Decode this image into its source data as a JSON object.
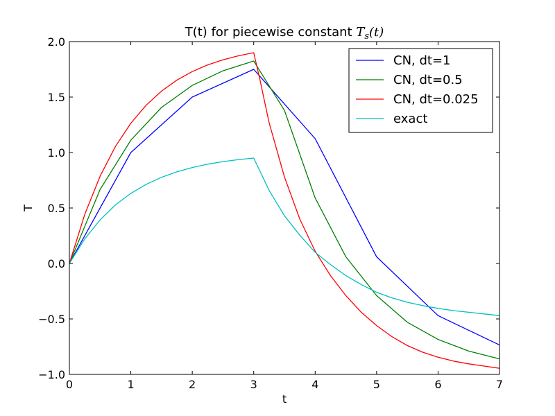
{
  "chart_data": {
    "type": "line",
    "title": "T(t) for piecewise constant ",
    "title_math": {
      "base": "T",
      "sub": "s",
      "tail": "(t)"
    },
    "xlabel": "t",
    "ylabel": "T",
    "xlim": [
      0,
      7
    ],
    "ylim": [
      -1.0,
      2.0
    ],
    "xticks": [
      0,
      1,
      2,
      3,
      4,
      5,
      6,
      7
    ],
    "xtick_labels": [
      "0",
      "1",
      "2",
      "3",
      "4",
      "5",
      "6",
      "7"
    ],
    "yticks": [
      -1.0,
      -0.5,
      0.0,
      0.5,
      1.0,
      1.5,
      2.0
    ],
    "ytick_labels": [
      "−1.0",
      "−0.5",
      "0.0",
      "0.5",
      "1.0",
      "1.5",
      "2.0"
    ],
    "grid": false,
    "legend_position": "top-right",
    "series": [
      {
        "name": "CN, dt=1",
        "color": "#0000ff",
        "x": [
          0,
          1,
          2,
          3,
          4,
          5,
          6,
          7
        ],
        "y": [
          0,
          1.0,
          1.5,
          1.75,
          1.125,
          0.06,
          -0.47,
          -0.735
        ]
      },
      {
        "name": "CN, dt=0.5",
        "color": "#008000",
        "x": [
          0,
          0.5,
          1,
          1.5,
          2,
          2.5,
          3,
          3.5,
          4,
          4.5,
          5,
          5.5,
          6,
          6.5,
          7
        ],
        "y": [
          0,
          0.667,
          1.111,
          1.407,
          1.605,
          1.737,
          1.825,
          1.38,
          0.59,
          0.06,
          -0.29,
          -0.53,
          -0.685,
          -0.79,
          -0.86
        ]
      },
      {
        "name": "CN, dt=0.025",
        "color": "#ff0000",
        "x": [
          0,
          0.25,
          0.5,
          0.75,
          1,
          1.25,
          1.5,
          1.75,
          2,
          2.25,
          2.5,
          2.75,
          3,
          3.1,
          3.25,
          3.5,
          3.75,
          4,
          4.25,
          4.5,
          4.75,
          5,
          5.25,
          5.5,
          5.75,
          6,
          6.25,
          6.5,
          6.75,
          7
        ],
        "y": [
          0,
          0.442,
          0.787,
          1.055,
          1.264,
          1.427,
          1.554,
          1.653,
          1.73,
          1.79,
          1.836,
          1.872,
          1.9,
          1.66,
          1.27,
          0.78,
          0.4,
          0.11,
          -0.11,
          -0.29,
          -0.44,
          -0.56,
          -0.66,
          -0.74,
          -0.8,
          -0.845,
          -0.88,
          -0.905,
          -0.925,
          -0.945
        ]
      },
      {
        "name": "exact",
        "color": "#00bfbf",
        "x": [
          0,
          0.25,
          0.5,
          0.75,
          1,
          1.25,
          1.5,
          1.75,
          2,
          2.25,
          2.5,
          2.75,
          3,
          3.25,
          3.5,
          3.75,
          4,
          4.25,
          4.5,
          4.75,
          5,
          5.25,
          5.5,
          5.75,
          6,
          6.25,
          6.5,
          6.75,
          7
        ],
        "y": [
          0,
          0.221,
          0.393,
          0.528,
          0.632,
          0.713,
          0.777,
          0.826,
          0.865,
          0.895,
          0.918,
          0.936,
          0.95,
          0.66,
          0.43,
          0.255,
          0.1,
          -0.01,
          -0.11,
          -0.19,
          -0.26,
          -0.31,
          -0.35,
          -0.38,
          -0.405,
          -0.425,
          -0.44,
          -0.455,
          -0.47
        ]
      }
    ]
  }
}
